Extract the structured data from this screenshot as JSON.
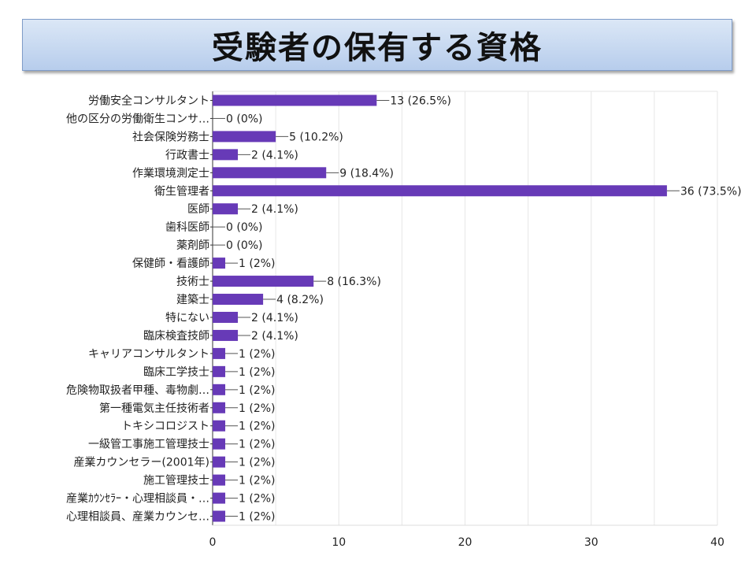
{
  "title": "受験者の保有する資格",
  "chart_data": {
    "type": "bar",
    "orientation": "horizontal",
    "categories": [
      "労働安全コンサルタント",
      "他の区分の労働衛生コンサ…",
      "社会保険労務士",
      "行政書士",
      "作業環境測定士",
      "衛生管理者",
      "医師",
      "歯科医師",
      "薬剤師",
      "保健師・看護師",
      "技術士",
      "建築士",
      "特にない",
      "臨床検査技師",
      "キャリアコンサルタント",
      "臨床工学技士",
      "危険物取扱者甲種、毒物劇…",
      "第一種電気主任技術者",
      "トキシコロジスト",
      "一級管工事施工管理技士",
      "産業カウンセラー(2001年)",
      "施工管理技士",
      "産業ｶｳﾝｾﾗｰ・心理相談員・…",
      "心理相談員、産業カウンセ…"
    ],
    "values": [
      13,
      0,
      5,
      2,
      9,
      36,
      2,
      0,
      0,
      1,
      8,
      4,
      2,
      2,
      1,
      1,
      1,
      1,
      1,
      1,
      1,
      1,
      1,
      1
    ],
    "data_labels": [
      "13 (26.5%)",
      "0 (0%)",
      "5 (10.2%)",
      "2 (4.1%)",
      "9 (18.4%)",
      "36 (73.5%)",
      "2 (4.1%)",
      "0 (0%)",
      "0 (0%)",
      "1 (2%)",
      "8 (16.3%)",
      "4 (8.2%)",
      "2 (4.1%)",
      "2 (4.1%)",
      "1 (2%)",
      "1 (2%)",
      "1 (2%)",
      "1 (2%)",
      "1 (2%)",
      "1 (2%)",
      "1 (2%)",
      "1 (2%)",
      "1 (2%)",
      "1 (2%)"
    ],
    "xlim": [
      0,
      40
    ],
    "xticks": [
      0,
      10,
      20,
      30,
      40
    ],
    "grid": true,
    "bar_color": "#673ab7"
  }
}
